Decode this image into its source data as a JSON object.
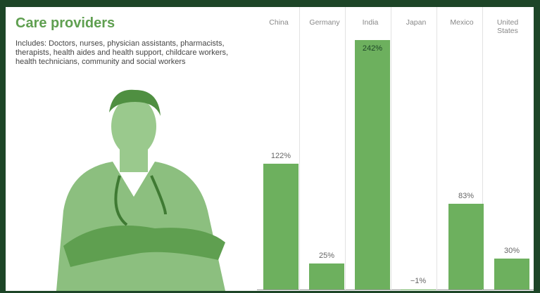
{
  "chart_data": {
    "type": "bar",
    "title": "Care providers",
    "subtitle": "Includes: Doctors, nurses, physician assistants, pharmacists, therapists, health aides and health support, childcare workers, health technicians, community and social workers",
    "categories": [
      "China",
      "Germany",
      "India",
      "Japan",
      "Mexico",
      "United States"
    ],
    "values": [
      122,
      25,
      242,
      -1,
      83,
      30
    ],
    "value_labels": [
      "122%",
      "25%",
      "242%",
      "−1%",
      "83%",
      "30%"
    ],
    "color": "#6db05e"
  }
}
